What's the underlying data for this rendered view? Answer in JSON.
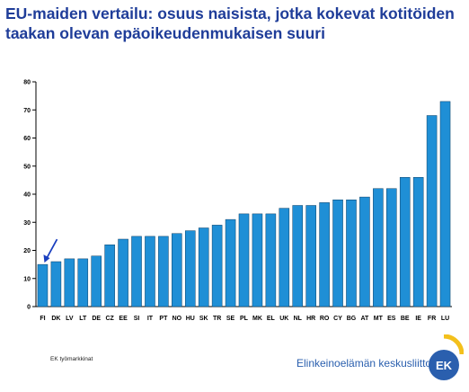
{
  "slide": {
    "title_line1": "EU-maiden vertailu: osuus naisista, jotka kokevat kotitöiden",
    "title_line2": "taakan olevan epäoikeudenmukaisen suuri",
    "source": "EK työmarkkinat",
    "logo_text": "Elinkeinoelämän keskusliitto",
    "logo_letters": "EK"
  },
  "colors": {
    "bar": "#1f8fd6",
    "bar_edge": "#0b3f66",
    "arrow": "#1a3fbf",
    "title": "#1f3d99"
  },
  "chart_data": {
    "type": "bar",
    "categories": [
      "FI",
      "DK",
      "LV",
      "LT",
      "DE",
      "CZ",
      "EE",
      "SI",
      "IT",
      "PT",
      "NO",
      "HU",
      "SK",
      "TR",
      "SE",
      "PL",
      "MK",
      "EL",
      "UK",
      "NL",
      "HR",
      "RO",
      "CY",
      "BG",
      "AT",
      "MT",
      "ES",
      "BE",
      "IE",
      "FR",
      "LU"
    ],
    "values": [
      15,
      16,
      17,
      17,
      18,
      22,
      24,
      25,
      25,
      25,
      26,
      27,
      28,
      29,
      31,
      33,
      33,
      33,
      35,
      36,
      36,
      37,
      38,
      38,
      39,
      42,
      42,
      46,
      46,
      68,
      73
    ],
    "yticks": [
      0,
      10,
      20,
      30,
      40,
      50,
      60,
      70,
      80
    ],
    "ylim": [
      0,
      80
    ],
    "grid": false,
    "legend": "none",
    "title": "",
    "xlabel": "",
    "ylabel": "",
    "annotation": "arrow-to-FI"
  }
}
